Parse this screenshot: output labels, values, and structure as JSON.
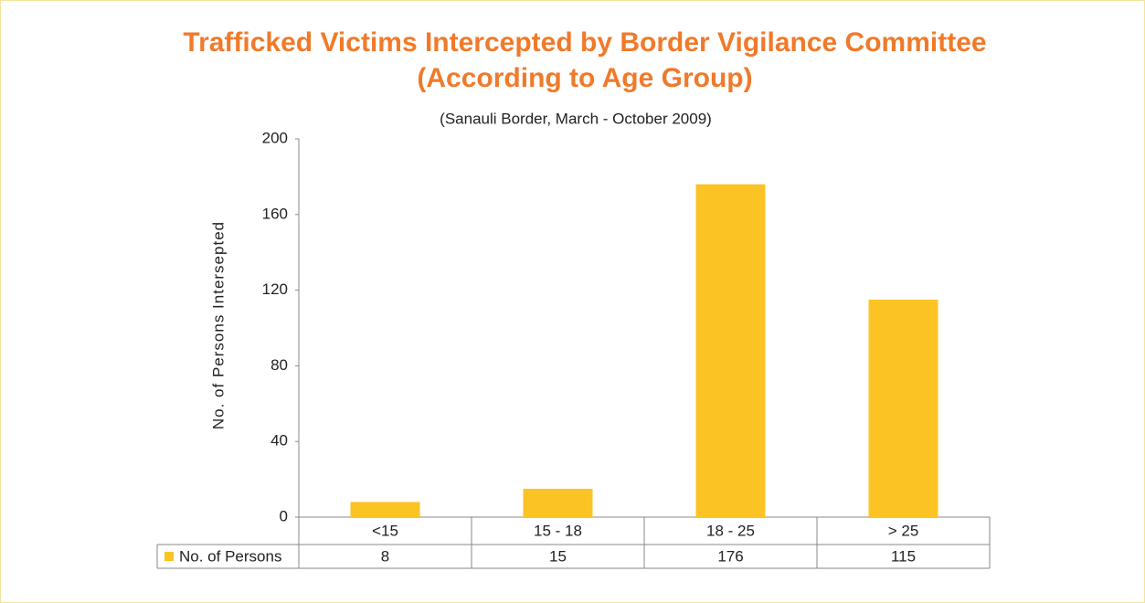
{
  "chart_data": {
    "type": "bar",
    "title": "Trafficked Victims Intercepted by Border Vigilance Committee",
    "title_line2": "(According to Age Group)",
    "subtitle": "(Sanauli Border, March - October 2009)",
    "y_label": "No. of Persons Intersepted",
    "categories": [
      "<15",
      "15 - 18",
      "18 - 25",
      "> 25"
    ],
    "series": [
      {
        "name": "No. of Persons",
        "color": "#fbc324",
        "values": [
          8,
          15,
          176,
          115
        ]
      }
    ],
    "ylim": [
      0,
      200
    ],
    "yticks": [
      0,
      40,
      80,
      120,
      160,
      200
    ],
    "grid": false
  }
}
